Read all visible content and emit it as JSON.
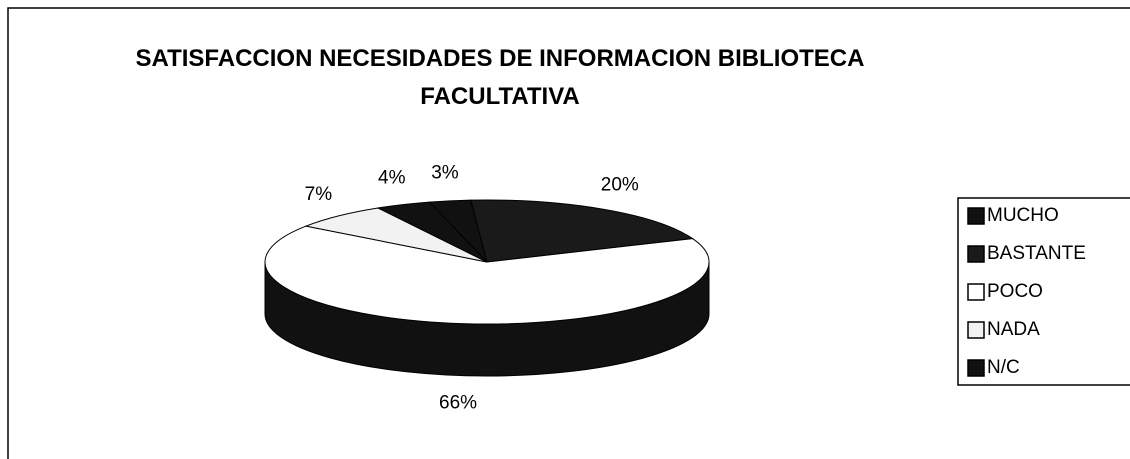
{
  "chart_data": {
    "type": "pie",
    "title": "SATISFACCION NECESIDADES DE INFORMACION BIBLIOTECA FACULTATIVA",
    "categories": [
      "MUCHO",
      "BASTANTE",
      "POCO",
      "NADA",
      "N/C"
    ],
    "values": [
      3,
      20,
      66,
      7,
      4
    ],
    "value_labels": [
      "3%",
      "20%",
      "66%",
      "7%",
      "4%"
    ],
    "colors": [
      "#111111",
      "#1a1a1a",
      "#ffffff",
      "#f2f2f2",
      "#111111"
    ],
    "legend": "right"
  }
}
